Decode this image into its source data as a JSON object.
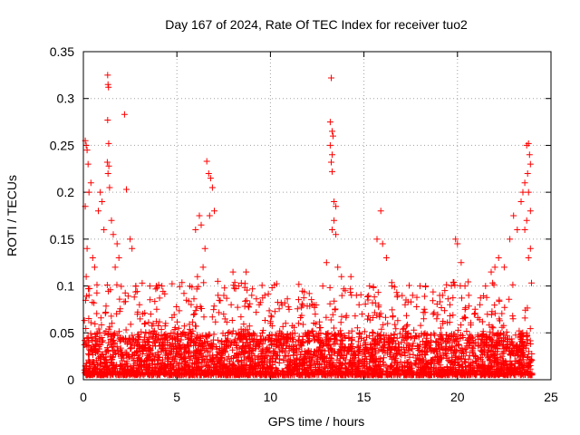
{
  "chart_data": {
    "type": "scatter",
    "title": "Day 167 of 2024, Rate Of TEC Index for receiver tuo2",
    "xlabel": "GPS time / hours",
    "ylabel": "ROTI / TECUs",
    "xlim": [
      0,
      25
    ],
    "ylim": [
      0,
      0.35
    ],
    "xticks": [
      0,
      5,
      10,
      15,
      20,
      25
    ],
    "xtick_labels": [
      "0",
      "5",
      "10",
      "15",
      "20",
      "25"
    ],
    "yticks": [
      0,
      0.05,
      0.1,
      0.15,
      0.2,
      0.25,
      0.3,
      0.35
    ],
    "ytick_labels": [
      "0",
      "0.05",
      "0.1",
      "0.15",
      "0.2",
      "0.25",
      "0.3",
      "0.35"
    ],
    "grid": true,
    "marker": "+",
    "series": [
      {
        "name": "ROTI",
        "color": "#ff0000",
        "points": [
          [
            0.1,
            0.255
          ],
          [
            0.15,
            0.25
          ],
          [
            0.2,
            0.245
          ],
          [
            0.25,
            0.23
          ],
          [
            0.3,
            0.2
          ],
          [
            0.1,
            0.185
          ],
          [
            0.4,
            0.21
          ],
          [
            0.2,
            0.14
          ],
          [
            0.5,
            0.13
          ],
          [
            0.15,
            0.11
          ],
          [
            0.3,
            0.09
          ],
          [
            0.6,
            0.12
          ],
          [
            0.8,
            0.18
          ],
          [
            0.9,
            0.2
          ],
          [
            1.0,
            0.19
          ],
          [
            1.1,
            0.16
          ],
          [
            1.3,
            0.325
          ],
          [
            1.32,
            0.315
          ],
          [
            1.34,
            0.312
          ],
          [
            1.3,
            0.277
          ],
          [
            1.35,
            0.252
          ],
          [
            1.28,
            0.232
          ],
          [
            1.36,
            0.228
          ],
          [
            1.32,
            0.22
          ],
          [
            1.4,
            0.205
          ],
          [
            1.5,
            0.17
          ],
          [
            1.6,
            0.155
          ],
          [
            1.7,
            0.12
          ],
          [
            1.8,
            0.145
          ],
          [
            1.9,
            0.13
          ],
          [
            2.2,
            0.283
          ],
          [
            2.3,
            0.203
          ],
          [
            2.5,
            0.15
          ],
          [
            2.6,
            0.14
          ],
          [
            2.8,
            0.1
          ],
          [
            3.0,
            0.08
          ],
          [
            3.3,
            0.06
          ],
          [
            3.6,
            0.07
          ],
          [
            3.9,
            0.1
          ],
          [
            4.2,
            0.1
          ],
          [
            4.4,
            0.06
          ],
          [
            4.5,
            0.04
          ],
          [
            5.0,
            0.03
          ],
          [
            5.5,
            0.03
          ],
          [
            5.9,
            0.04
          ],
          [
            6.0,
            0.16
          ],
          [
            6.2,
            0.175
          ],
          [
            6.3,
            0.165
          ],
          [
            6.5,
            0.14
          ],
          [
            6.6,
            0.233
          ],
          [
            6.7,
            0.22
          ],
          [
            6.8,
            0.215
          ],
          [
            6.9,
            0.205
          ],
          [
            7.0,
            0.18
          ],
          [
            6.75,
            0.175
          ],
          [
            6.4,
            0.12
          ],
          [
            6.1,
            0.11
          ],
          [
            7.2,
            0.09
          ],
          [
            7.5,
            0.07
          ],
          [
            7.9,
            0.08
          ],
          [
            8.0,
            0.115
          ],
          [
            8.3,
            0.1
          ],
          [
            8.7,
            0.115
          ],
          [
            9.0,
            0.09
          ],
          [
            9.4,
            0.08
          ],
          [
            9.7,
            0.09
          ],
          [
            10.0,
            0.06
          ],
          [
            10.5,
            0.05
          ],
          [
            11.0,
            0.075
          ],
          [
            11.5,
            0.06
          ],
          [
            12.0,
            0.05
          ],
          [
            12.4,
            0.07
          ],
          [
            12.8,
            0.1
          ],
          [
            13.0,
            0.125
          ],
          [
            13.2,
            0.275
          ],
          [
            13.25,
            0.322
          ],
          [
            13.3,
            0.265
          ],
          [
            13.35,
            0.26
          ],
          [
            13.2,
            0.25
          ],
          [
            13.3,
            0.24
          ],
          [
            13.25,
            0.232
          ],
          [
            13.3,
            0.222
          ],
          [
            13.4,
            0.19
          ],
          [
            13.5,
            0.185
          ],
          [
            13.4,
            0.17
          ],
          [
            13.3,
            0.16
          ],
          [
            13.5,
            0.155
          ],
          [
            13.6,
            0.12
          ],
          [
            13.8,
            0.11
          ],
          [
            14.0,
            0.095
          ],
          [
            14.3,
            0.11
          ],
          [
            14.6,
            0.09
          ],
          [
            14.9,
            0.07
          ],
          [
            15.3,
            0.1
          ],
          [
            15.7,
            0.15
          ],
          [
            15.9,
            0.18
          ],
          [
            16.0,
            0.145
          ],
          [
            16.2,
            0.13
          ],
          [
            16.5,
            0.1
          ],
          [
            16.8,
            0.09
          ],
          [
            17.2,
            0.08
          ],
          [
            17.6,
            0.09
          ],
          [
            18.0,
            0.1
          ],
          [
            18.3,
            0.1
          ],
          [
            18.7,
            0.07
          ],
          [
            19.2,
            0.09
          ],
          [
            19.6,
            0.08
          ],
          [
            19.9,
            0.15
          ],
          [
            20.0,
            0.145
          ],
          [
            20.2,
            0.125
          ],
          [
            20.4,
            0.1
          ],
          [
            20.6,
            0.09
          ],
          [
            20.9,
            0.07
          ],
          [
            21.2,
            0.08
          ],
          [
            21.5,
            0.1
          ],
          [
            21.8,
            0.115
          ],
          [
            22.0,
            0.12
          ],
          [
            22.2,
            0.13
          ],
          [
            22.5,
            0.12
          ],
          [
            22.8,
            0.15
          ],
          [
            23.0,
            0.175
          ],
          [
            23.2,
            0.16
          ],
          [
            23.4,
            0.19
          ],
          [
            23.5,
            0.2
          ],
          [
            23.6,
            0.21
          ],
          [
            23.7,
            0.25
          ],
          [
            23.8,
            0.252
          ],
          [
            23.85,
            0.24
          ],
          [
            23.9,
            0.23
          ],
          [
            23.75,
            0.22
          ],
          [
            23.8,
            0.2
          ],
          [
            23.9,
            0.18
          ],
          [
            23.7,
            0.17
          ],
          [
            23.6,
            0.16
          ],
          [
            23.9,
            0.14
          ],
          [
            23.8,
            0.13
          ]
        ]
      }
    ],
    "dense_band": {
      "description": "majority of ROTI values lie between roughly 0.005 and 0.05 TECU/min across the whole day",
      "y_range": [
        0.005,
        0.05
      ]
    }
  }
}
